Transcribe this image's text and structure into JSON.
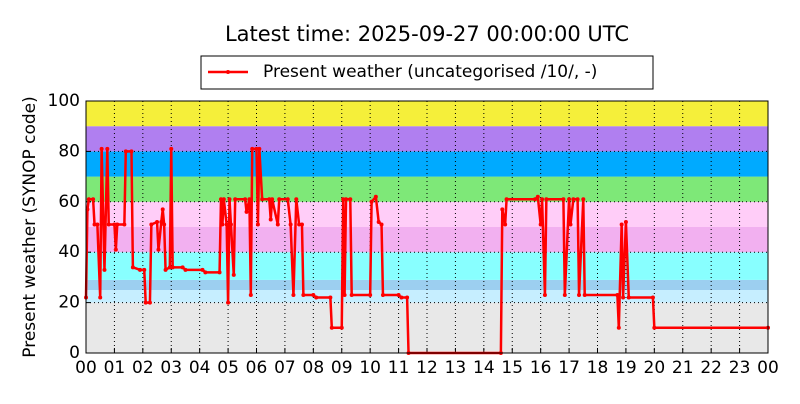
{
  "chart_data": {
    "type": "line",
    "title": "Latest time: 2025-09-27 00:00:00 UTC",
    "y_label": "Present weather (SYNOP code)",
    "xlim": [
      0,
      24
    ],
    "ylim": [
      0,
      100
    ],
    "xticks": [
      {
        "value": 0,
        "label": "00"
      },
      {
        "value": 1,
        "label": "01"
      },
      {
        "value": 2,
        "label": "02"
      },
      {
        "value": 3,
        "label": "03"
      },
      {
        "value": 4,
        "label": "04"
      },
      {
        "value": 5,
        "label": "05"
      },
      {
        "value": 6,
        "label": "06"
      },
      {
        "value": 7,
        "label": "07"
      },
      {
        "value": 8,
        "label": "08"
      },
      {
        "value": 9,
        "label": "09"
      },
      {
        "value": 10,
        "label": "10"
      },
      {
        "value": 11,
        "label": "11"
      },
      {
        "value": 12,
        "label": "12"
      },
      {
        "value": 13,
        "label": "13"
      },
      {
        "value": 14,
        "label": "14"
      },
      {
        "value": 15,
        "label": "15"
      },
      {
        "value": 16,
        "label": "16"
      },
      {
        "value": 17,
        "label": "17"
      },
      {
        "value": 18,
        "label": "18"
      },
      {
        "value": 19,
        "label": "19"
      },
      {
        "value": 20,
        "label": "20"
      },
      {
        "value": 21,
        "label": "21"
      },
      {
        "value": 22,
        "label": "22"
      },
      {
        "value": 23,
        "label": "23"
      },
      {
        "value": 24,
        "label": "00"
      }
    ],
    "yticks": [
      0,
      20,
      40,
      60,
      80,
      100
    ],
    "grid": true,
    "bands": [
      {
        "from": 0,
        "to": 20,
        "color": "#e8e8e8"
      },
      {
        "from": 20,
        "to": 25,
        "color": "#c6eeff"
      },
      {
        "from": 25,
        "to": 29,
        "color": "#9ccff0"
      },
      {
        "from": 29,
        "to": 40,
        "color": "#88ffff"
      },
      {
        "from": 40,
        "to": 50,
        "color": "#f2b0f0"
      },
      {
        "from": 50,
        "to": 60,
        "color": "#ffcdf8"
      },
      {
        "from": 60,
        "to": 70,
        "color": "#7ee878"
      },
      {
        "from": 70,
        "to": 80,
        "color": "#00aaff"
      },
      {
        "from": 80,
        "to": 90,
        "color": "#b07ff0"
      },
      {
        "from": 90,
        "to": 100,
        "color": "#f5ef3a"
      }
    ],
    "legend": "top",
    "series": [
      {
        "name": "Present weather (uncategorised /10/, -)",
        "color": "#ff0000",
        "x": [
          0.0,
          0.05,
          0.1,
          0.25,
          0.3,
          0.4,
          0.5,
          0.55,
          0.65,
          0.75,
          0.8,
          1.0,
          1.05,
          1.1,
          1.35,
          1.4,
          1.6,
          1.65,
          1.9,
          2.05,
          2.1,
          2.25,
          2.3,
          2.5,
          2.55,
          2.65,
          2.7,
          2.75,
          2.8,
          2.95,
          3.0,
          3.05,
          3.4,
          3.5,
          4.1,
          4.2,
          4.7,
          4.75,
          4.8,
          4.85,
          4.95,
          5.0,
          5.05,
          5.1,
          5.2,
          5.25,
          5.6,
          5.65,
          5.75,
          5.8,
          5.85,
          6.0,
          6.05,
          6.1,
          6.2,
          6.45,
          6.5,
          6.55,
          6.75,
          6.8,
          7.1,
          7.2,
          7.3,
          7.4,
          7.5,
          7.6,
          7.65,
          8.0,
          8.1,
          8.6,
          8.65,
          9.0,
          9.05,
          9.1,
          9.15,
          9.3,
          9.35,
          10.0,
          10.05,
          10.2,
          10.3,
          10.4,
          10.45,
          11.0,
          11.1,
          11.3,
          11.35,
          14.6,
          14.65,
          14.75,
          14.8,
          15.8,
          15.9,
          16.0,
          16.05,
          16.15,
          16.2,
          16.8,
          16.85,
          17.0,
          17.05,
          17.15,
          17.3,
          17.35,
          17.5,
          17.55,
          18.7,
          18.75,
          18.85,
          18.9,
          19.0,
          19.1,
          19.95,
          20.0,
          24.0
        ],
        "values": [
          22,
          57,
          61,
          61,
          51,
          51,
          22,
          81,
          33,
          81,
          51,
          51,
          41,
          51,
          51,
          80,
          80,
          34,
          33,
          33,
          20,
          20,
          51,
          52,
          41,
          52,
          57,
          51,
          33,
          34,
          81,
          34,
          34,
          33,
          33,
          32,
          32,
          61,
          51,
          61,
          51,
          20,
          61,
          51,
          31,
          61,
          61,
          56,
          61,
          23,
          81,
          81,
          51,
          81,
          61,
          61,
          53,
          61,
          51,
          61,
          61,
          51,
          23,
          61,
          51,
          51,
          23,
          23,
          22,
          22,
          10,
          10,
          61,
          23,
          61,
          61,
          23,
          23,
          60,
          62,
          52,
          51,
          23,
          23,
          22,
          22,
          0,
          0,
          57,
          51,
          61,
          61,
          62,
          51,
          61,
          23,
          61,
          61,
          23,
          61,
          51,
          61,
          61,
          23,
          61,
          23,
          23,
          10,
          51,
          22,
          52,
          22,
          22,
          10,
          10
        ]
      }
    ]
  }
}
